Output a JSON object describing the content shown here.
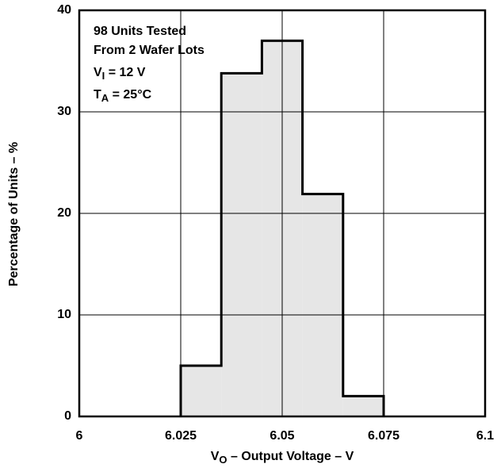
{
  "chart_data": {
    "type": "histogram",
    "bins": [
      6.025,
      6.035,
      6.045,
      6.055,
      6.065,
      6.075
    ],
    "values": [
      5,
      33.8,
      37,
      21.9,
      2
    ],
    "color": "#e6e6e6",
    "xlim": [
      6,
      6.1
    ],
    "xticks": [
      6,
      6.025,
      6.05,
      6.075,
      6.1
    ],
    "ylim": [
      0,
      40
    ],
    "yticks": [
      0,
      10,
      20,
      30,
      40
    ],
    "grid": true,
    "ylabel": "Percentage of Units – %",
    "xlabel": {
      "main": "V",
      "sub": "O",
      "rest": " – Output Voltage – V"
    },
    "annotations": [
      {
        "main": "98 Units Tested"
      },
      {
        "main": "From 2 Wafer Lots"
      },
      {
        "main": "V",
        "sub": "I",
        "rest": " = 12 V"
      },
      {
        "main": "T",
        "sub": "A",
        "rest": " = 25°C"
      }
    ]
  }
}
